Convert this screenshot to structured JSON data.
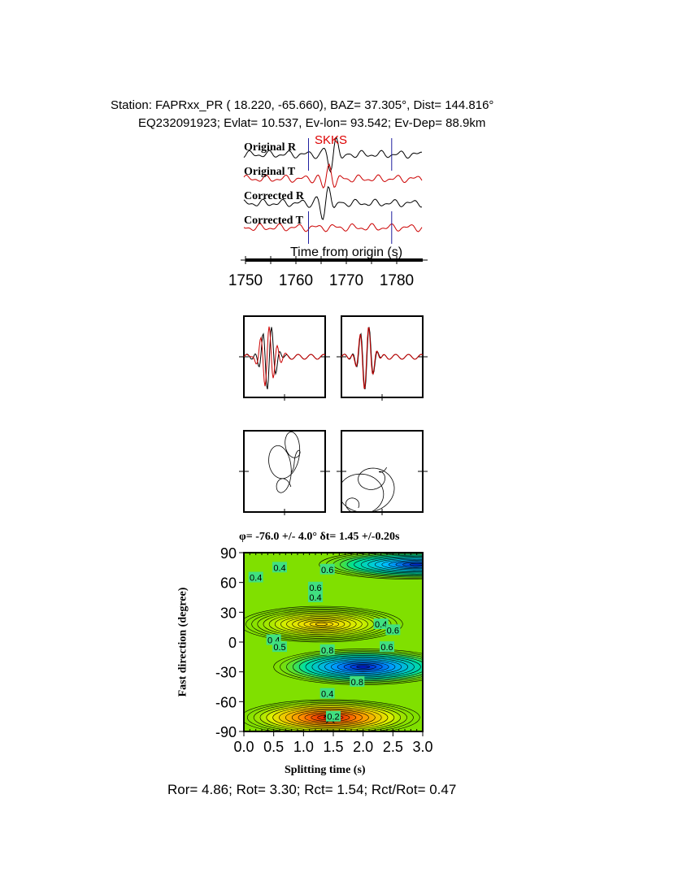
{
  "header": {
    "line1": "Station: FAPRxx_PR (  18.220,  -65.660), BAZ=   37.305°, Dist=  144.816°",
    "line2": "EQ232091923; Evlat=  10.537, Ev-lon=  93.542; Ev-Dep= 88.9km"
  },
  "chart_data": [
    {
      "type": "line",
      "phase_label": "SKKS",
      "traces": [
        "Original R",
        "Original T",
        "Corrected R",
        "Corrected T"
      ],
      "trace_colors": [
        "#000000",
        "#cc0000",
        "#000000",
        "#cc0000"
      ],
      "xlabel": "Time from origin (s)",
      "xticks": [
        1750,
        1760,
        1770,
        1780
      ],
      "xlim": [
        1750,
        1784
      ],
      "window_markers": [
        1762.5,
        1779
      ]
    },
    {
      "type": "line",
      "description_panels": "waveform-comparison",
      "series_colors": [
        "#000000",
        "#cc0000"
      ]
    },
    {
      "type": "scatter",
      "description_panels": "particle-motion"
    },
    {
      "type": "heatmap",
      "title": "φ= -76.0 +/- 4.0° δt= 1.45 +/-0.20s",
      "xlabel": "Splitting time (s)",
      "ylabel": "Fast direction (degree)",
      "xticks": [
        "0.0",
        "0.5",
        "1.0",
        "1.5",
        "2.0",
        "2.5",
        "3.0"
      ],
      "yticks": [
        "90",
        "60",
        "30",
        "0",
        "-30",
        "-60",
        "-90"
      ],
      "xlim": [
        0,
        3
      ],
      "ylim": [
        -90,
        90
      ],
      "contour_labels": [
        "0.4",
        "0.6",
        "0.6",
        "0.4",
        "0.4",
        "0.6",
        "0.4",
        "0.5",
        "0.8",
        "0.6",
        "0.8",
        "0.2",
        "0.4",
        "0.4"
      ],
      "best_fit": {
        "dt": 1.45,
        "phi": -76.0
      },
      "colors": {
        "background": "#80e000",
        "min": "#e00000",
        "max": "#0010d0"
      }
    }
  ],
  "footer": "Ror= 4.86; Rot= 3.30; Rct= 1.54; Rct/Rot= 0.47"
}
